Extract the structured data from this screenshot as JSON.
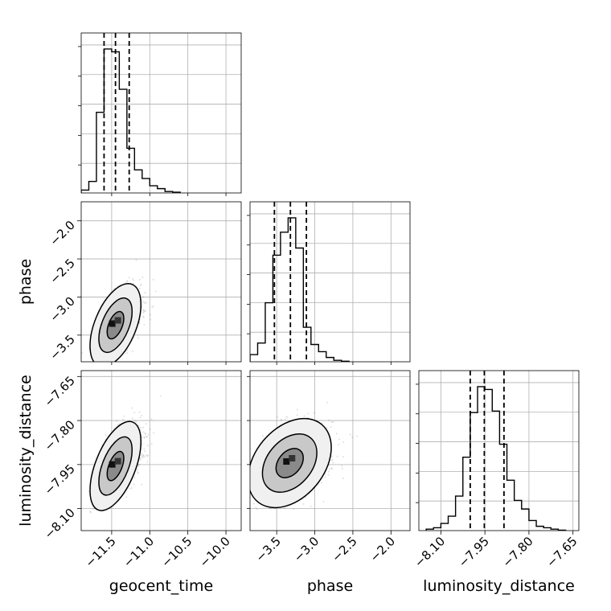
{
  "chart_data": {
    "type": "corner",
    "parameters": [
      {
        "name": "geocent_time",
        "label": "geocent_time",
        "range": [
          -11.9,
          -9.8
        ],
        "ticks": [
          -11.5,
          -11.0,
          -10.5,
          -10.0
        ],
        "tick_labels": [
          "−11.5",
          "−11.0",
          "−10.5",
          "−10.0"
        ],
        "quantiles": [
          -11.6,
          -11.45,
          -11.27
        ]
      },
      {
        "name": "phase",
        "label": "phase",
        "range": [
          -3.85,
          -1.75
        ],
        "ticks": [
          -3.5,
          -3.0,
          -2.5,
          -2.0
        ],
        "tick_labels": [
          "−3.5",
          "−3.0",
          "−2.5",
          "−2.0"
        ],
        "quantiles": [
          -3.53,
          -3.32,
          -3.11
        ]
      },
      {
        "name": "luminosity_distance",
        "label": "luminosity_distance",
        "range": [
          -8.175,
          -7.63
        ],
        "ticks": [
          -8.1,
          -7.95,
          -7.8,
          -7.65
        ],
        "tick_labels": [
          "−8.10",
          "−7.95",
          "−7.80",
          "−7.65"
        ],
        "quantiles": [
          -8.0,
          -7.952,
          -7.885
        ]
      }
    ],
    "histograms": [
      {
        "param": "geocent_time",
        "bins": [
          -11.9,
          -11.8,
          -11.7,
          -11.6,
          -11.5,
          -11.4,
          -11.3,
          -11.2,
          -11.1,
          -11.0,
          -10.9,
          -10.8,
          -10.7,
          -10.6
        ],
        "counts": [
          0.02,
          0.08,
          0.56,
          1.0,
          0.98,
          0.72,
          0.31,
          0.16,
          0.1,
          0.05,
          0.03,
          0.01,
          0.005
        ]
      },
      {
        "param": "phase",
        "bins": [
          -3.85,
          -3.75,
          -3.65,
          -3.55,
          -3.45,
          -3.35,
          -3.25,
          -3.15,
          -3.05,
          -2.95,
          -2.85,
          -2.75,
          -2.65,
          -2.55
        ],
        "counts": [
          0.05,
          0.13,
          0.41,
          0.74,
          0.9,
          1.0,
          0.79,
          0.24,
          0.12,
          0.07,
          0.03,
          0.01,
          0.004
        ]
      },
      {
        "param": "luminosity_distance",
        "bins": [
          -8.15,
          -8.125,
          -8.1,
          -8.075,
          -8.05,
          -8.025,
          -8.0,
          -7.975,
          -7.95,
          -7.925,
          -7.9,
          -7.875,
          -7.85,
          -7.825,
          -7.8,
          -7.775,
          -7.75,
          -7.725,
          -7.7,
          -7.675
        ],
        "counts": [
          0.01,
          0.02,
          0.05,
          0.1,
          0.24,
          0.51,
          0.82,
          1.0,
          0.98,
          0.83,
          0.6,
          0.35,
          0.21,
          0.15,
          0.07,
          0.03,
          0.02,
          0.01,
          0.003
        ]
      }
    ],
    "pairs": [
      {
        "x": "geocent_time",
        "y": "phase",
        "center": [
          -11.45,
          -3.37
        ],
        "sigma": [
          0.11,
          0.18
        ],
        "rho": 0.5,
        "contour_levels": [
          0.39,
          0.86,
          0.99
        ]
      },
      {
        "x": "geocent_time",
        "y": "luminosity_distance",
        "center": [
          -11.45,
          -7.955
        ],
        "sigma": [
          0.11,
          0.05
        ],
        "rho": 0.55,
        "contour_levels": [
          0.39,
          0.86,
          0.99
        ]
      },
      {
        "x": "phase",
        "y": "luminosity_distance",
        "center": [
          -3.33,
          -7.945
        ],
        "sigma": [
          0.18,
          0.05
        ],
        "rho": 0.35,
        "contour_levels": [
          0.39,
          0.86,
          0.99
        ]
      }
    ],
    "grid": true,
    "colors": {
      "line": "#000000",
      "grid": "#b0b0b0",
      "points": "#555555"
    }
  }
}
